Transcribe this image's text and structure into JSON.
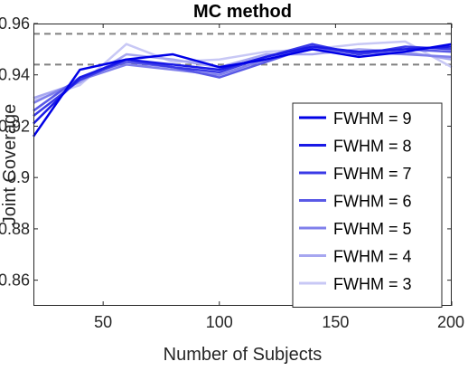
{
  "chart_data": {
    "type": "line",
    "title": "MC method",
    "xlabel": "Number of Subjects",
    "ylabel": "Joint Coverage",
    "xlim": [
      20,
      200
    ],
    "ylim": [
      0.85,
      0.96
    ],
    "xticks": [
      50,
      100,
      150,
      200
    ],
    "xtick_labels": [
      "50",
      "100",
      "150",
      "200"
    ],
    "yticks": [
      0.86,
      0.88,
      0.9,
      0.92,
      0.94,
      0.96
    ],
    "ytick_labels": [
      "0.86",
      "0.88",
      "0.9",
      "0.92",
      "0.94",
      "0.96"
    ],
    "grid": false,
    "legend_position": "bottom-right",
    "reference_lines": [
      0.944,
      0.956
    ],
    "reference_line_color": "#808080",
    "x": [
      20,
      40,
      60,
      80,
      100,
      120,
      140,
      160,
      180,
      200
    ],
    "series": [
      {
        "name": "FWHM = 9",
        "color": "#0000e6",
        "values": [
          0.916,
          0.942,
          0.946,
          0.948,
          0.943,
          0.946,
          0.95,
          0.947,
          0.949,
          0.952
        ]
      },
      {
        "name": "FWHM = 8",
        "color": "#1a1ae6",
        "values": [
          0.921,
          0.939,
          0.946,
          0.944,
          0.942,
          0.947,
          0.951,
          0.949,
          0.95,
          0.951
        ]
      },
      {
        "name": "FWHM = 7",
        "color": "#3939e6",
        "values": [
          0.924,
          0.938,
          0.946,
          0.943,
          0.941,
          0.947,
          0.952,
          0.948,
          0.951,
          0.95
        ]
      },
      {
        "name": "FWHM = 6",
        "color": "#5959e6",
        "values": [
          0.926,
          0.939,
          0.945,
          0.943,
          0.939,
          0.945,
          0.951,
          0.948,
          0.95,
          0.949
        ]
      },
      {
        "name": "FWHM = 5",
        "color": "#8080eb",
        "values": [
          0.929,
          0.938,
          0.944,
          0.942,
          0.94,
          0.946,
          0.95,
          0.949,
          0.948,
          0.947
        ]
      },
      {
        "name": "FWHM = 4",
        "color": "#a6a6f0",
        "values": [
          0.931,
          0.937,
          0.948,
          0.946,
          0.943,
          0.948,
          0.948,
          0.95,
          0.949,
          0.946
        ]
      },
      {
        "name": "FWHM = 3",
        "color": "#c8c8f5",
        "values": [
          0.93,
          0.936,
          0.952,
          0.945,
          0.946,
          0.949,
          0.95,
          0.952,
          0.953,
          0.943
        ]
      }
    ]
  }
}
